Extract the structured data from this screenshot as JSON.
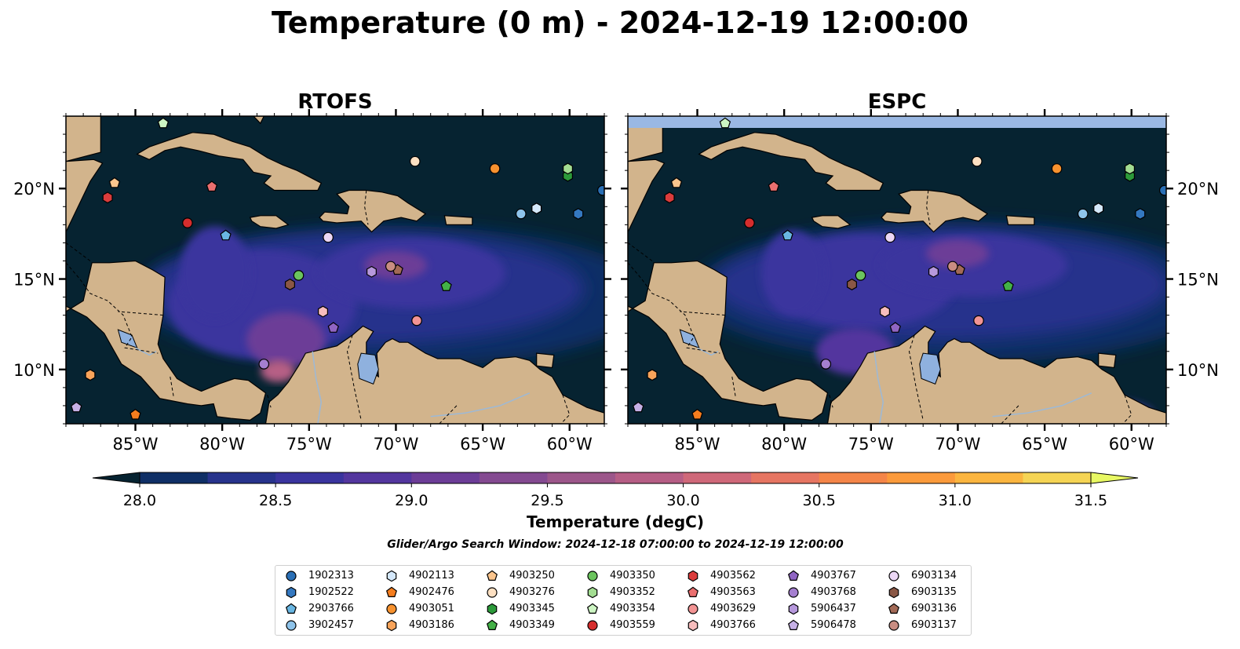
{
  "chart_data": {
    "type": "heatmap",
    "title": "Temperature (0 m) - 2024-12-19 12:00:00",
    "panels": [
      {
        "title": "RTOFS"
      },
      {
        "title": "ESPC"
      }
    ],
    "lon_range": [
      -89,
      -58
    ],
    "lat_range": [
      7,
      24
    ],
    "x_ticks": [
      {
        "value": -85,
        "label": "85°W"
      },
      {
        "value": -80,
        "label": "80°W"
      },
      {
        "value": -75,
        "label": "75°W"
      },
      {
        "value": -70,
        "label": "70°W"
      },
      {
        "value": -65,
        "label": "65°W"
      },
      {
        "value": -60,
        "label": "60°W"
      }
    ],
    "y_ticks": [
      {
        "value": 10,
        "label": "10°N"
      },
      {
        "value": 15,
        "label": "15°N"
      },
      {
        "value": 20,
        "label": "20°N"
      }
    ],
    "colorbar": {
      "label": "Temperature (degC)",
      "min": 28.0,
      "max": 31.5,
      "step": 0.25,
      "extend": "both",
      "ticks": [
        "28.0",
        "28.5",
        "29.0",
        "29.5",
        "30.0",
        "30.5",
        "31.0",
        "31.5"
      ],
      "colors": [
        "#062331",
        "#0f2f66",
        "#27338c",
        "#3a349e",
        "#53369e",
        "#6c3d97",
        "#844a91",
        "#9c568a",
        "#b65e85",
        "#cf6879",
        "#e67562",
        "#f48548",
        "#fb9a3b",
        "#fbb53f",
        "#f5d454",
        "#e8f863"
      ]
    },
    "search_window": "Glider/Argo Search Window: 2024-12-18 07:00:00 to 2024-12-19 12:00:00",
    "colors": {
      "land": "#d2b48c",
      "river": "#9db9d6",
      "lake": "#8fb1de",
      "nodata": "#9ab8e3"
    },
    "platforms": [
      {
        "id": "1902313",
        "marker": "circle",
        "color": "#2a6fb5",
        "lon": -58.1,
        "lat": 19.9
      },
      {
        "id": "1902522",
        "marker": "hexagon",
        "color": "#3478c0",
        "lon": -59.5,
        "lat": 18.6
      },
      {
        "id": "2903766",
        "marker": "pentagon",
        "color": "#69b6e2",
        "lon": -79.8,
        "lat": 17.4
      },
      {
        "id": "3902457",
        "marker": "circle",
        "color": "#8ec3ea",
        "lon": -62.8,
        "lat": 18.6
      },
      {
        "id": "4902113",
        "marker": "hexagon",
        "color": "#d4e8fb",
        "lon": -61.9,
        "lat": 18.9
      },
      {
        "id": "4902476",
        "marker": "pentagon",
        "color": "#f57d1e",
        "lon": -85.0,
        "lat": 7.5
      },
      {
        "id": "4903051",
        "marker": "circle",
        "color": "#f7922f",
        "lon": -64.3,
        "lat": 21.1
      },
      {
        "id": "4903186",
        "marker": "hexagon",
        "color": "#f9a45a",
        "lon": -87.6,
        "lat": 9.7
      },
      {
        "id": "4903250",
        "marker": "pentagon",
        "color": "#fbc58d",
        "lon": -86.2,
        "lat": 20.3
      },
      {
        "id": "4903276",
        "marker": "circle",
        "color": "#fde0c2",
        "lon": -68.9,
        "lat": 21.5
      },
      {
        "id": "4903345",
        "marker": "hexagon",
        "color": "#2c9a3a",
        "lon": -60.1,
        "lat": 20.7
      },
      {
        "id": "4903349",
        "marker": "pentagon",
        "color": "#43b047",
        "lon": -67.1,
        "lat": 14.6
      },
      {
        "id": "4903350",
        "marker": "circle",
        "color": "#6bc45e",
        "lon": -75.6,
        "lat": 15.2
      },
      {
        "id": "4903352",
        "marker": "hexagon",
        "color": "#a3dd92",
        "lon": -60.1,
        "lat": 21.1
      },
      {
        "id": "4903354",
        "marker": "pentagon",
        "color": "#cdf5c3",
        "lon": -83.4,
        "lat": 23.6
      },
      {
        "id": "4903559",
        "marker": "circle",
        "color": "#d52d2d",
        "lon": -82.0,
        "lat": 18.1
      },
      {
        "id": "4903562",
        "marker": "hexagon",
        "color": "#db3c3c",
        "lon": -86.6,
        "lat": 19.5
      },
      {
        "id": "4903563",
        "marker": "pentagon",
        "color": "#ea6f6f",
        "lon": -80.6,
        "lat": 20.1
      },
      {
        "id": "4903629",
        "marker": "circle",
        "color": "#f39494",
        "lon": -68.8,
        "lat": 12.7
      },
      {
        "id": "4903766",
        "marker": "hexagon",
        "color": "#f7bdbd",
        "lon": -74.2,
        "lat": 13.2
      },
      {
        "id": "4903767",
        "marker": "pentagon",
        "color": "#9065c3",
        "lon": -73.6,
        "lat": 12.3
      },
      {
        "id": "4903768",
        "marker": "circle",
        "color": "#a57fd0",
        "lon": -77.6,
        "lat": 10.3
      },
      {
        "id": "5906437",
        "marker": "hexagon",
        "color": "#b698dc",
        "lon": -71.4,
        "lat": 15.4
      },
      {
        "id": "5906478",
        "marker": "pentagon",
        "color": "#c6b0e6",
        "lon": -88.4,
        "lat": 7.9
      },
      {
        "id": "6903134",
        "marker": "circle",
        "color": "#ecd7f5",
        "lon": -73.9,
        "lat": 17.3
      },
      {
        "id": "6903135",
        "marker": "hexagon",
        "color": "#8a5745",
        "lon": -76.1,
        "lat": 14.7
      },
      {
        "id": "6903136",
        "marker": "pentagon",
        "color": "#a36a57",
        "lon": -69.9,
        "lat": 15.5
      },
      {
        "id": "6903137",
        "marker": "circle",
        "color": "#c98d82",
        "lon": -70.3,
        "lat": 15.7
      }
    ]
  }
}
